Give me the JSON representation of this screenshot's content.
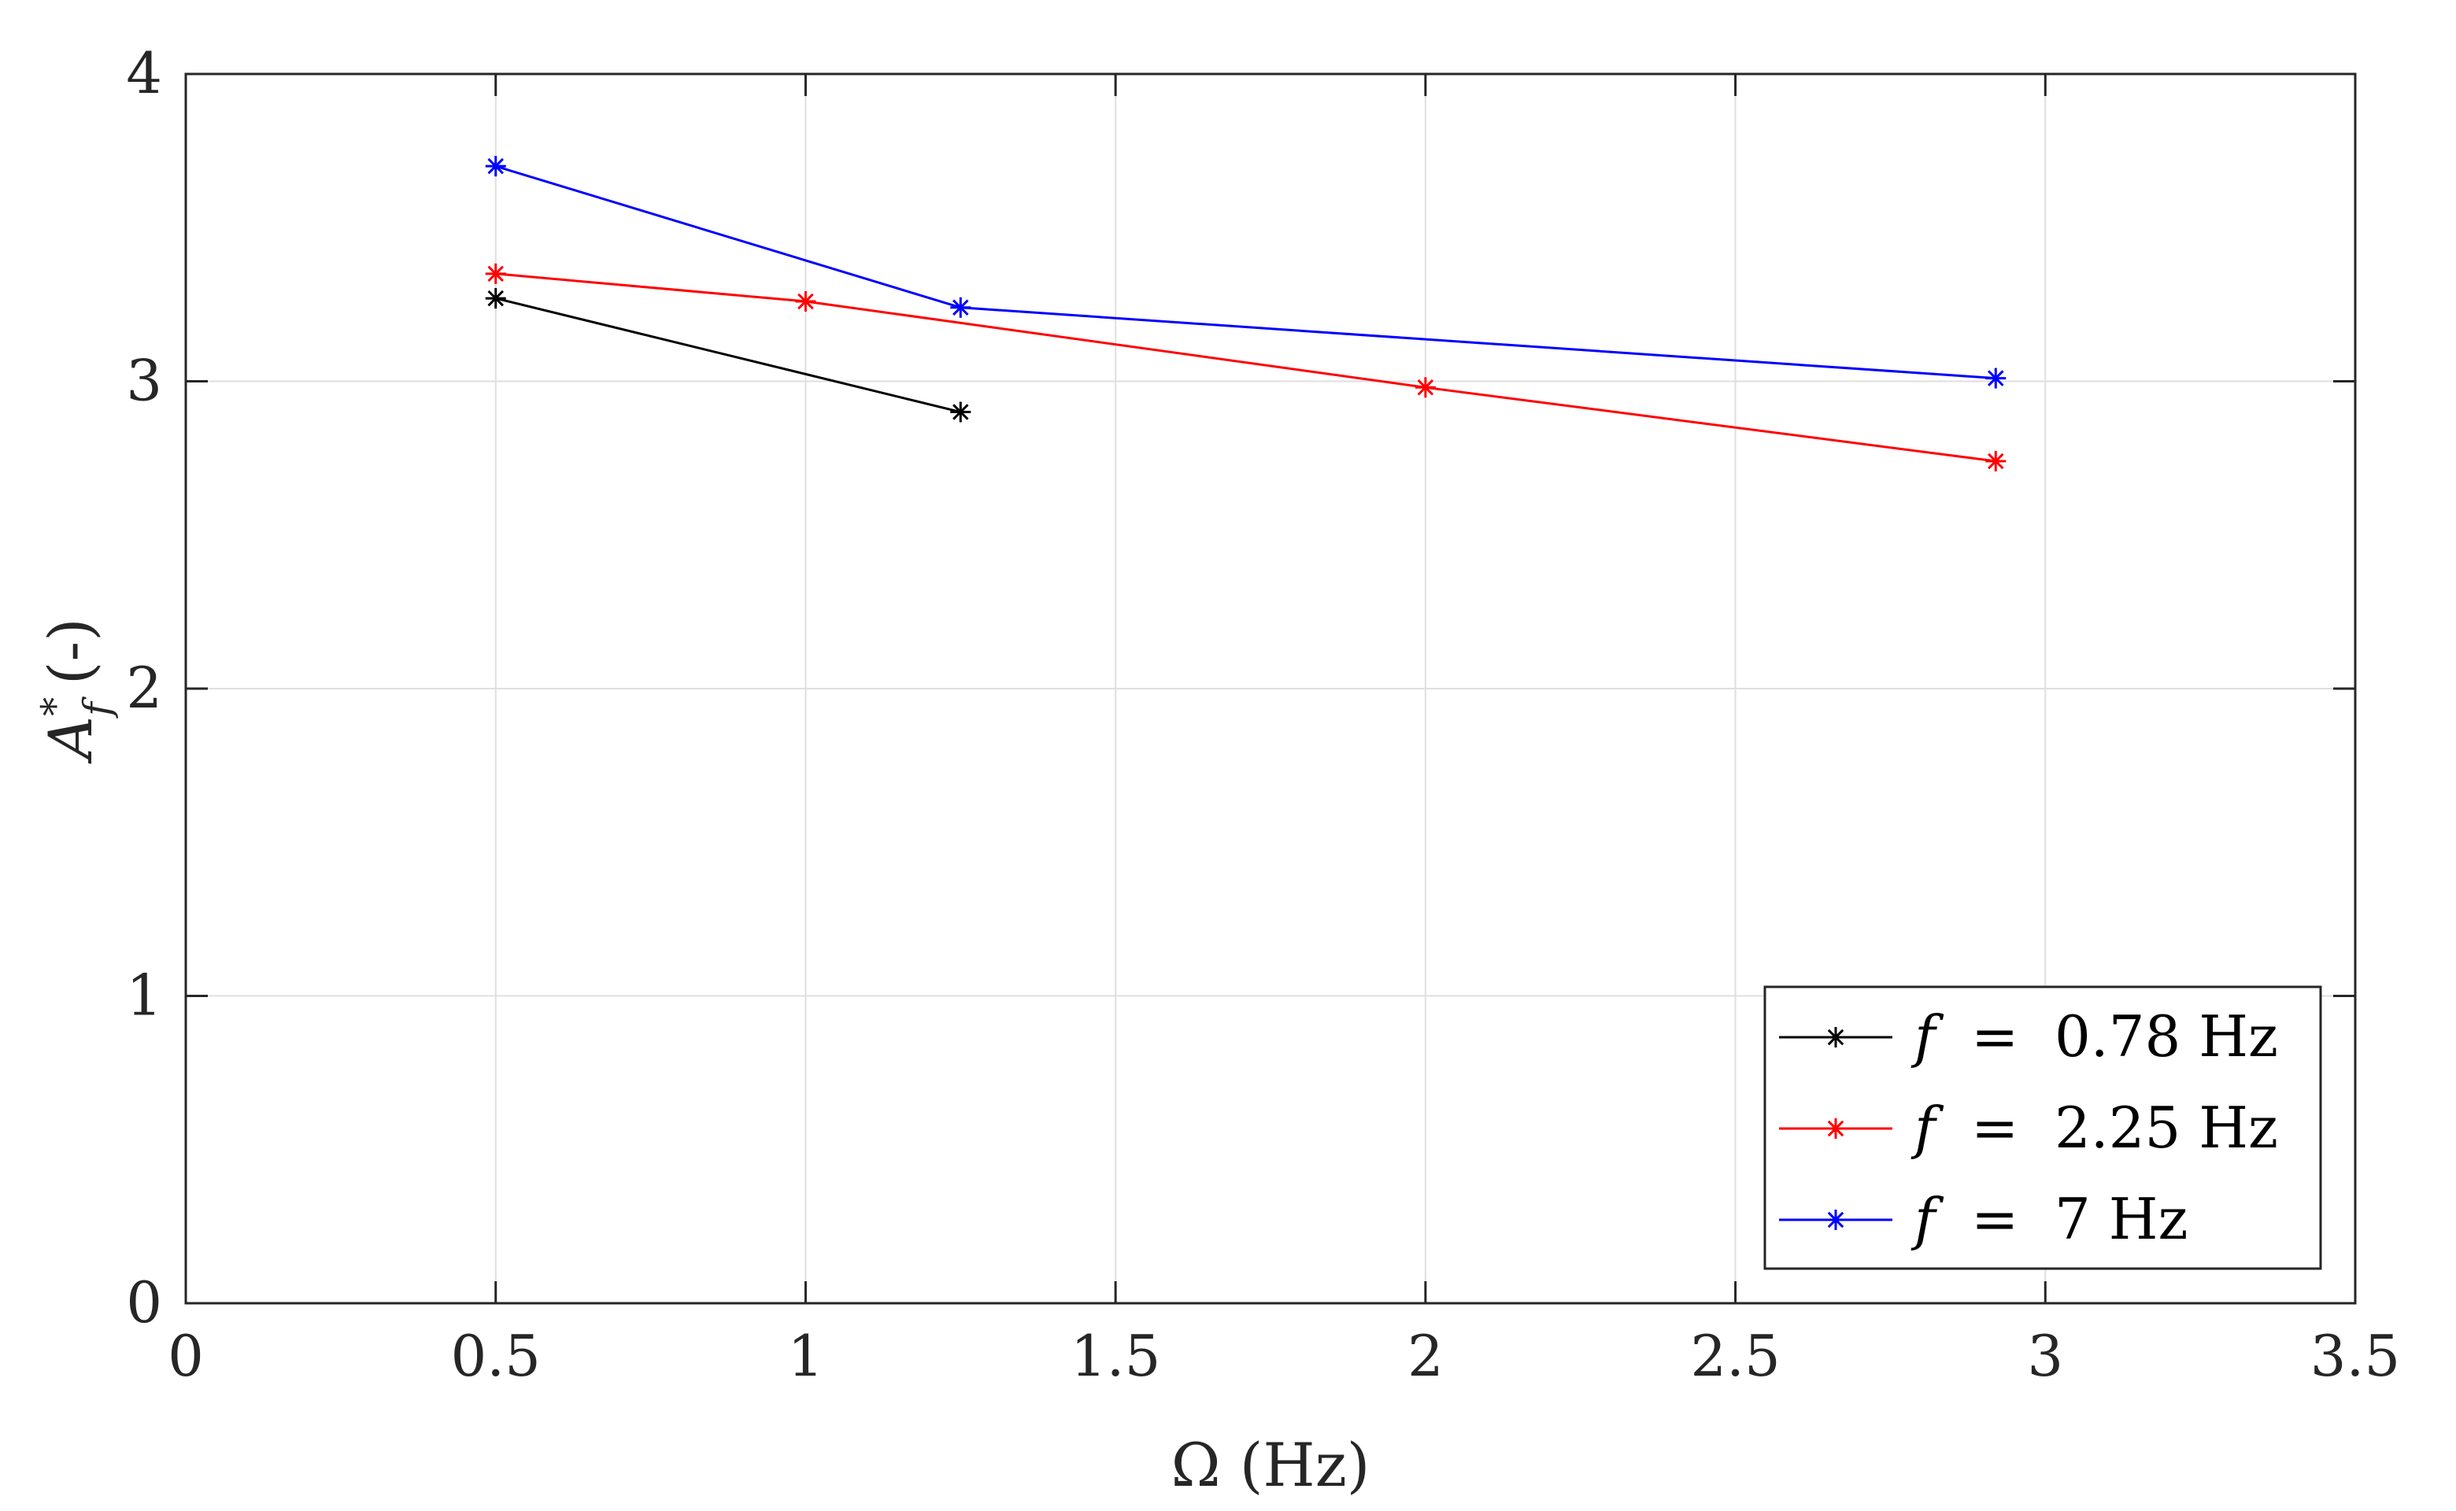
{
  "chart_data": {
    "type": "line",
    "title": "",
    "xlabel": "Ω (Hz)",
    "ylabel_symbol": "A",
    "ylabel_superscript": "*",
    "ylabel_subscript": "f",
    "ylabel_unit": "(-)",
    "xlim": [
      0,
      3.5
    ],
    "ylim": [
      0,
      4
    ],
    "xticks": [
      0,
      0.5,
      1,
      1.5,
      2,
      2.5,
      3,
      3.5
    ],
    "xtick_labels": [
      "0",
      "0.5",
      "1",
      "1.5",
      "2",
      "2.5",
      "3",
      "3.5"
    ],
    "yticks": [
      0,
      1,
      2,
      3,
      4
    ],
    "ytick_labels": [
      "0",
      "1",
      "2",
      "3",
      "4"
    ],
    "grid": true,
    "legend_position": "bottom-right",
    "marker": "asterisk",
    "series": [
      {
        "name": "f = 0.78 Hz",
        "legend_var": "f",
        "legend_eq": "=",
        "legend_value": "0.78 Hz",
        "color": "#000000",
        "x": [
          0.5,
          1.25
        ],
        "y": [
          3.27,
          2.9
        ]
      },
      {
        "name": "f = 2.25 Hz",
        "legend_var": "f",
        "legend_eq": "=",
        "legend_value": "2.25 Hz",
        "color": "#ff0000",
        "x": [
          0.5,
          1.0,
          2.0,
          2.92
        ],
        "y": [
          3.35,
          3.26,
          2.98,
          2.74
        ]
      },
      {
        "name": "f = 7 Hz",
        "legend_var": "f",
        "legend_eq": "=",
        "legend_value": "7 Hz",
        "color": "#0000ff",
        "x": [
          0.5,
          1.25,
          2.92
        ],
        "y": [
          3.7,
          3.24,
          3.01
        ]
      }
    ]
  }
}
